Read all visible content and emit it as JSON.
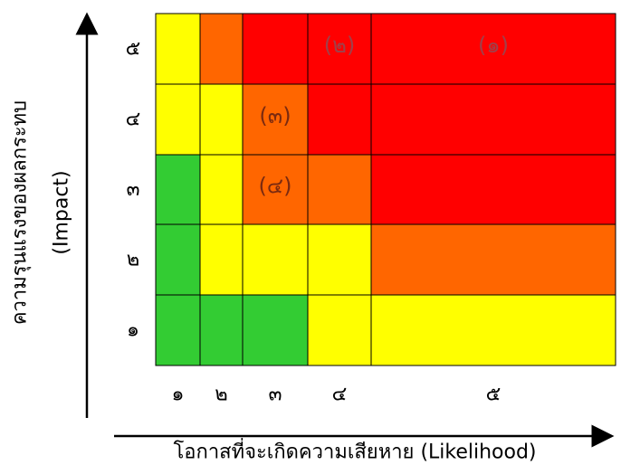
{
  "colors": {
    "green": "#33cc33",
    "yellow": "#ffff00",
    "orange": "#ff6600",
    "red": "#ff0000"
  },
  "x_axis": {
    "title": "โอกาสที่จะเกิดความเสียหาย (Likelihood)",
    "ticks": [
      "๑",
      "๒",
      "๓",
      "๔",
      "๕"
    ]
  },
  "y_axis": {
    "title_line1": "ความรุนแรงของผลกระทบ",
    "title_line2": "(Impact)",
    "ticks": [
      "๑",
      "๒",
      "๓",
      "๔",
      "๕"
    ]
  },
  "grid": [
    [
      "yellow",
      "orange",
      "red",
      "red",
      "red"
    ],
    [
      "yellow",
      "yellow",
      "orange",
      "red",
      "red"
    ],
    [
      "green",
      "yellow",
      "orange",
      "orange",
      "red"
    ],
    [
      "green",
      "yellow",
      "yellow",
      "yellow",
      "orange"
    ],
    [
      "green",
      "green",
      "green",
      "yellow",
      "yellow"
    ]
  ],
  "risks": [
    {
      "label": "(๑)",
      "likelihood": 5,
      "impact": 5
    },
    {
      "label": "(๒)",
      "likelihood": 4,
      "impact": 5
    },
    {
      "label": "(๓)",
      "likelihood": 3,
      "impact": 4
    },
    {
      "label": "(๔)",
      "likelihood": 3,
      "impact": 3
    }
  ]
}
